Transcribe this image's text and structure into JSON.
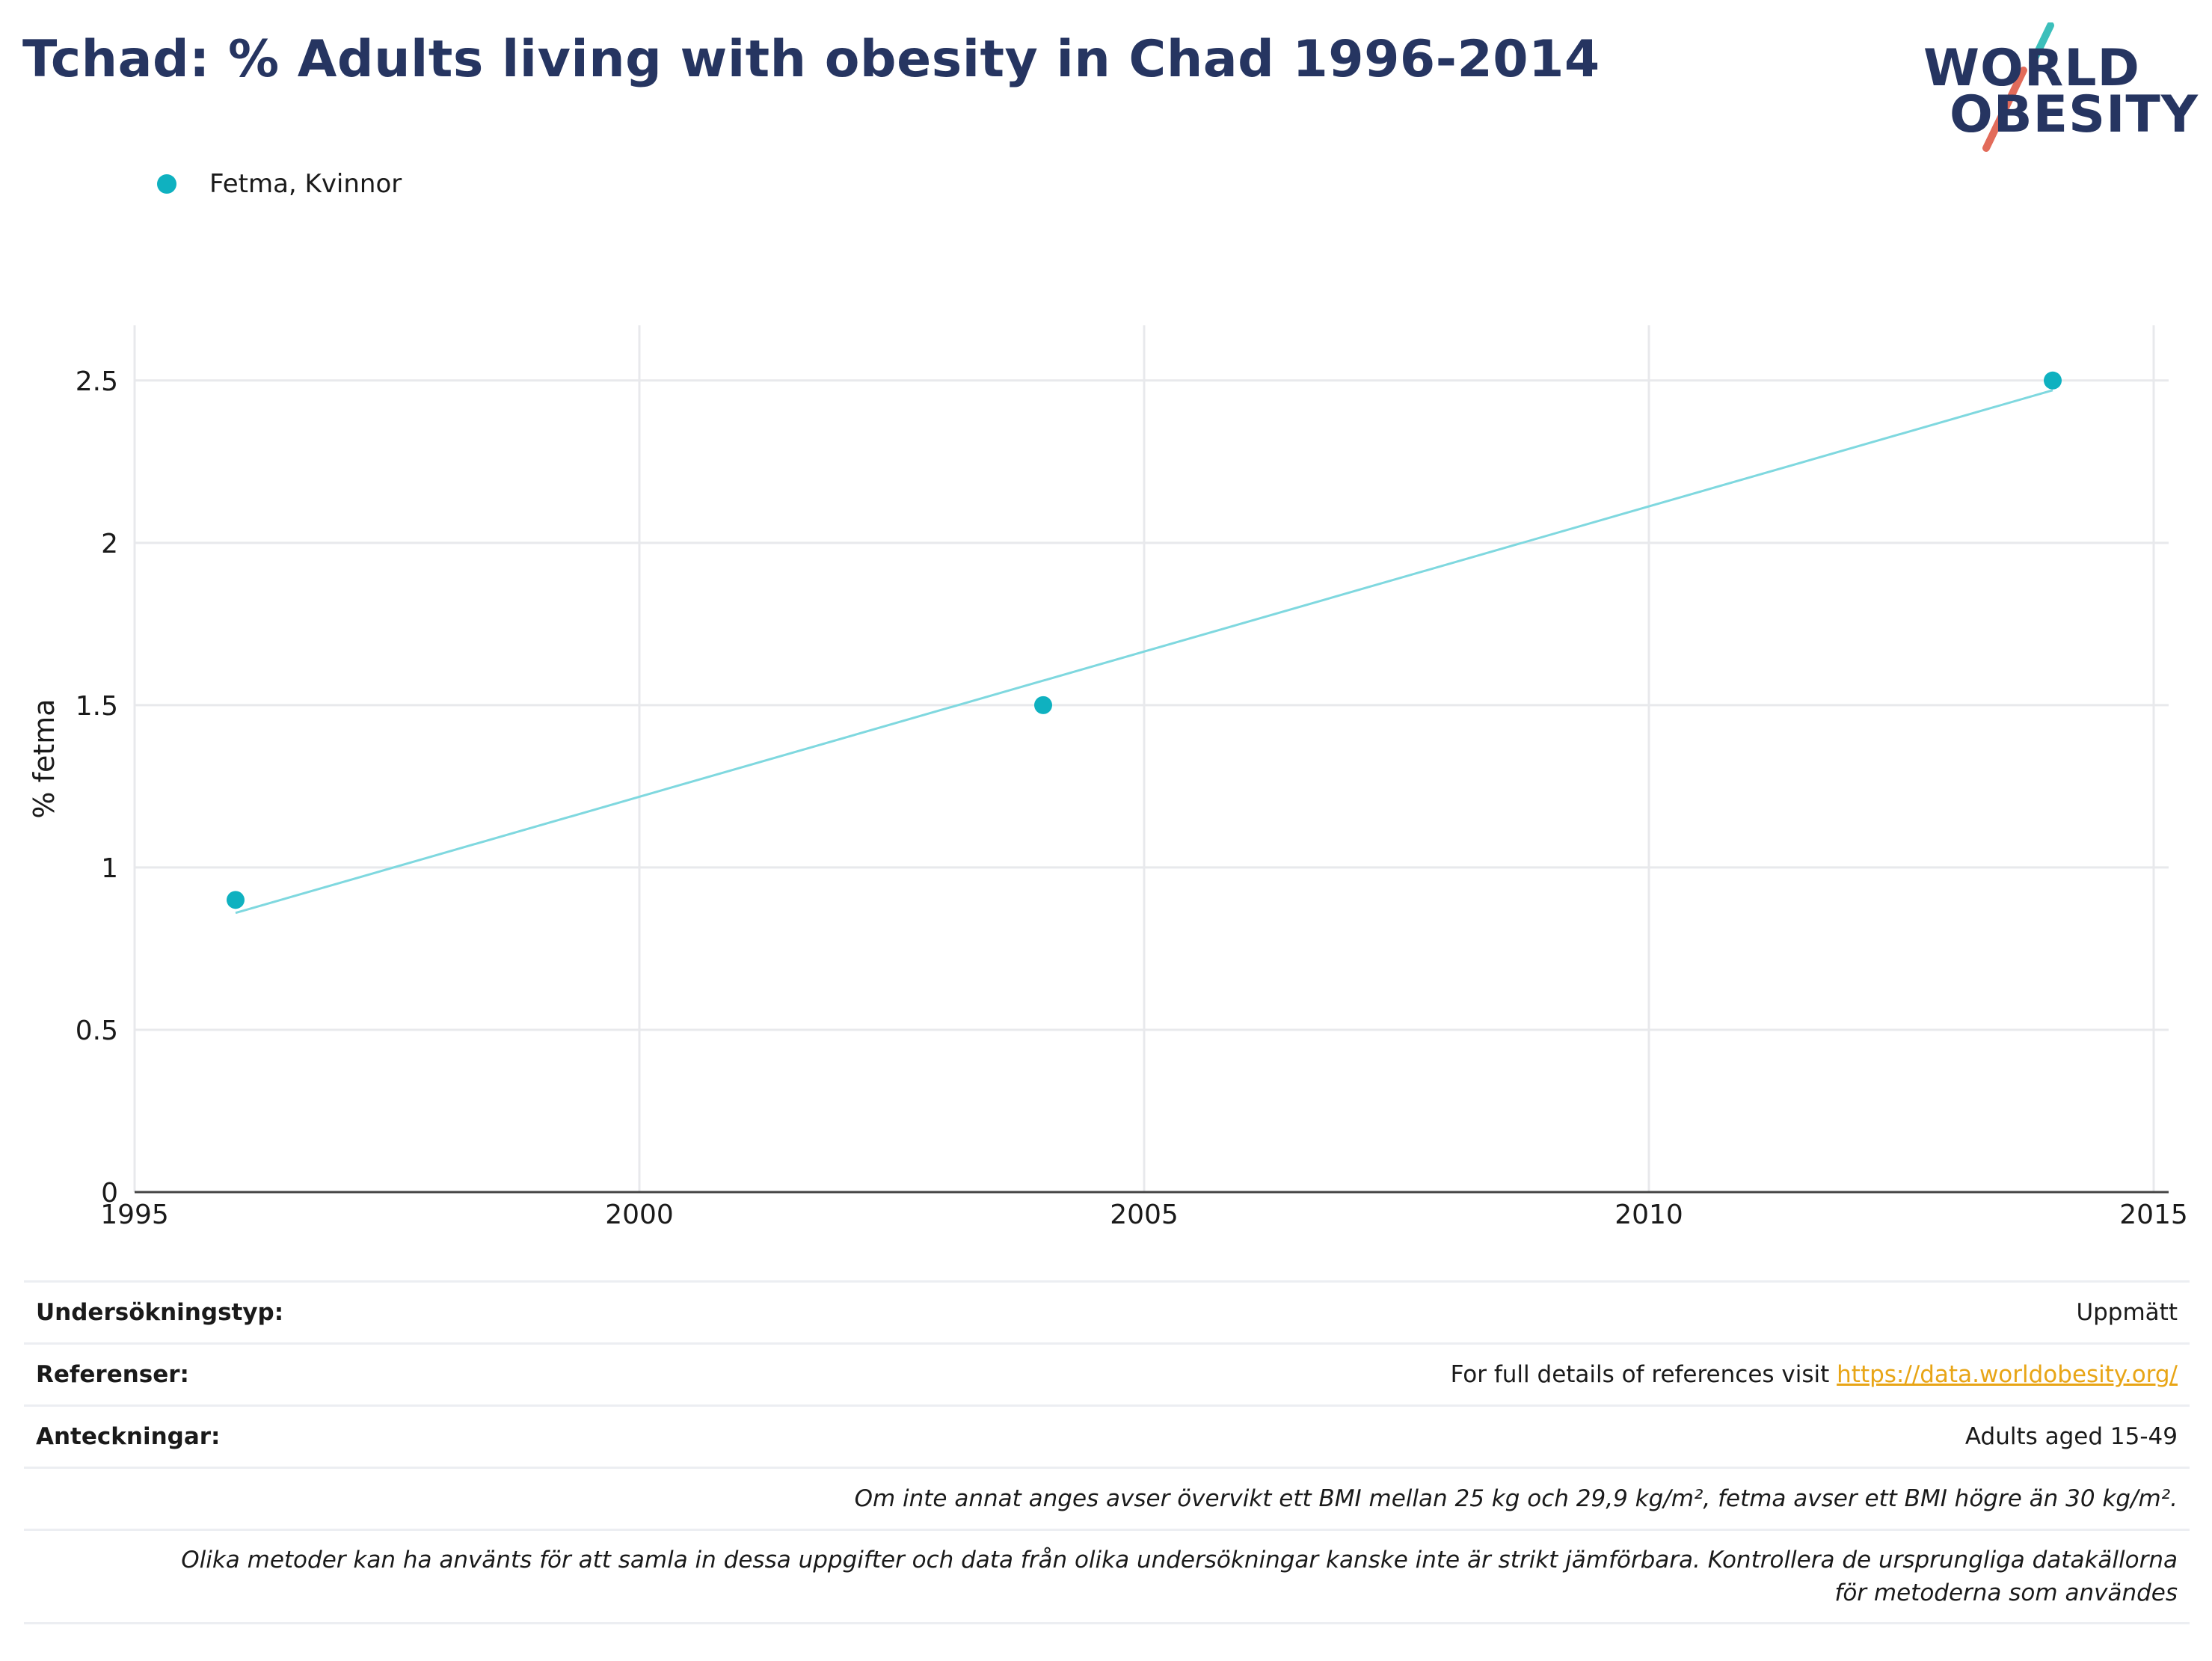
{
  "title": "Tchad: % Adults living with obesity in Chad 1996-2014",
  "logo": {
    "line1": "WORLD",
    "line2": "OBESITY",
    "slash_colors": [
      "#3cbfbb",
      "#e26b5a"
    ]
  },
  "legend": {
    "label": "Fetma, Kvinnor",
    "color": "#0fb1c0"
  },
  "chart_data": {
    "type": "scatter",
    "ylabel": "% fetma",
    "xlabel": "",
    "xlim": [
      1995,
      2015
    ],
    "ylim": [
      0,
      2.67
    ],
    "x_ticks": [
      1995,
      2000,
      2005,
      2010,
      2015
    ],
    "y_ticks": [
      0,
      0.5,
      1,
      1.5,
      2,
      2.5
    ],
    "x_tick_labels": [
      "1995",
      "2000",
      "2005",
      "2010",
      "2015"
    ],
    "y_tick_labels": [
      "0",
      "0.5",
      "1",
      "1.5",
      "2",
      "2.5"
    ],
    "grid": true,
    "legend_position": "top-left",
    "series": [
      {
        "name": "Fetma, Kvinnor",
        "color": "#0fb1c0",
        "x": [
          1996,
          2004,
          2014
        ],
        "y": [
          0.9,
          1.5,
          2.5
        ]
      }
    ],
    "trendline": {
      "color": "#7fd8df",
      "x": [
        1996,
        2014
      ],
      "y": [
        0.86,
        2.47
      ]
    }
  },
  "info": {
    "survey_type_label": "Undersökningstyp:",
    "survey_type_value": "Uppmätt",
    "references_label": "Referenser:",
    "references_text": "For full details of references visit ",
    "references_link": "https://data.worldobesity.org/",
    "notes_label": "Anteckningar:",
    "notes_value": "Adults aged 15-49",
    "bmi_note": "Om inte annat anges avser övervikt ett BMI mellan 25 kg och 29,9 kg/m², fetma avser ett BMI högre än 30 kg/m².",
    "methods_note": "Olika metoder kan ha använts för att samla in dessa uppgifter och data från olika undersökningar kanske inte är strikt jämförbara. Kontrollera de ursprungliga datakällorna för metoderna som användes"
  }
}
